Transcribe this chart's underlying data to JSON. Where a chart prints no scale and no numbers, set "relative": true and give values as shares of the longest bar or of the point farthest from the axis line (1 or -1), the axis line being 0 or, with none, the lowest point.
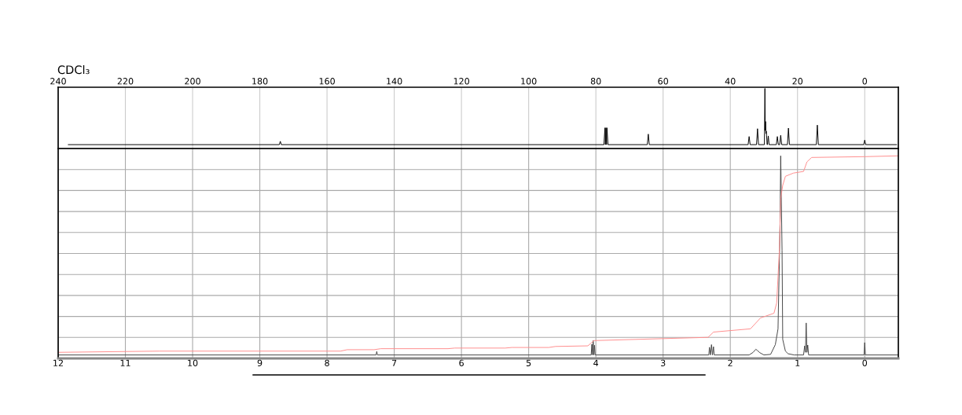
{
  "chart_data": [
    {
      "type": "line",
      "title": "CDCl₃",
      "relative": true,
      "color": "#000000",
      "xlim": [
        240,
        -10
      ],
      "xticks": [
        240,
        220,
        200,
        180,
        160,
        140,
        120,
        100,
        80,
        60,
        40,
        20,
        0
      ],
      "grid": "x",
      "tick_labels": "x",
      "x": [
        237,
        174.2,
        173.9,
        173.6,
        77.6,
        77.3,
        77.15,
        77.0,
        76.85,
        76.7,
        76.4,
        64.7,
        64.4,
        64.1,
        34.7,
        34.4,
        34.1,
        32.2,
        31.9,
        31.6,
        29.85,
        29.7,
        29.6,
        29.5,
        29.4,
        29.3,
        29.2,
        29.05,
        28.95,
        28.7,
        28.45,
        26.3,
        26.0,
        25.7,
        25.3,
        25.0,
        24.7,
        23.0,
        22.7,
        22.4,
        14.4,
        14.1,
        13.8,
        0.3,
        0.0,
        -0.3,
        -9.5
      ],
      "values": [
        0.065,
        0.065,
        0.12,
        0.065,
        0.065,
        0.345,
        0.065,
        0.345,
        0.065,
        0.345,
        0.065,
        0.065,
        0.24,
        0.065,
        0.065,
        0.2,
        0.065,
        0.065,
        0.33,
        0.065,
        0.065,
        1.0,
        0.3,
        0.45,
        0.25,
        0.29,
        0.22,
        0.065,
        0.065,
        0.21,
        0.065,
        0.065,
        0.2,
        0.065,
        0.065,
        0.22,
        0.065,
        0.065,
        0.34,
        0.065,
        0.065,
        0.39,
        0.065,
        0.065,
        0.14,
        0.065,
        0.065
      ]
    },
    {
      "type": "line",
      "relative": true,
      "xlim": [
        12,
        -0.5
      ],
      "xticks": [
        12,
        11,
        10,
        9,
        8,
        7,
        6,
        5,
        4,
        3,
        2,
        1,
        0
      ],
      "grid": true,
      "tick_labels": "x",
      "series": [
        {
          "color": "#444444",
          "x": [
            12.0,
            7.27,
            7.26,
            7.25,
            4.07,
            4.06,
            4.05,
            4.04,
            4.03,
            4.02,
            4.01,
            2.32,
            2.31,
            2.295,
            2.28,
            2.265,
            2.25,
            2.24,
            1.72,
            1.66,
            1.62,
            1.6,
            1.56,
            1.5,
            1.4,
            1.33,
            1.29,
            1.26,
            1.25,
            1.23,
            1.22,
            1.18,
            1.14,
            1.05,
            0.91,
            0.894,
            0.882,
            0.871,
            0.86,
            0.848,
            0.835,
            0.01,
            0.0,
            -0.01,
            -0.5
          ],
          "values": [
            0.017,
            0.017,
            0.034,
            0.017,
            0.017,
            0.07,
            0.017,
            0.088,
            0.017,
            0.065,
            0.017,
            0.017,
            0.055,
            0.017,
            0.068,
            0.017,
            0.058,
            0.017,
            0.017,
            0.03,
            0.045,
            0.04,
            0.028,
            0.017,
            0.02,
            0.068,
            0.146,
            0.66,
            1.0,
            0.533,
            0.094,
            0.036,
            0.023,
            0.017,
            0.017,
            0.062,
            0.03,
            0.175,
            0.03,
            0.066,
            0.017,
            0.017,
            0.078,
            0.017,
            0.017
          ]
        },
        {
          "color": "#ff8c8c",
          "x": [
            12.0,
            10.5,
            7.8,
            7.7,
            7.3,
            7.2,
            6.2,
            6.1,
            5.35,
            5.25,
            4.7,
            4.6,
            4.12,
            4.08,
            4.03,
            2.33,
            2.25,
            1.7,
            1.55,
            1.35,
            1.31,
            1.27,
            1.25,
            1.22,
            1.18,
            1.06,
            0.91,
            0.86,
            0.79,
            0.0,
            -0.5
          ],
          "values": [
            0.03,
            0.036,
            0.036,
            0.043,
            0.043,
            0.048,
            0.048,
            0.051,
            0.051,
            0.054,
            0.054,
            0.059,
            0.062,
            0.073,
            0.088,
            0.104,
            0.13,
            0.146,
            0.2,
            0.223,
            0.274,
            0.533,
            0.79,
            0.854,
            0.899,
            0.915,
            0.923,
            0.97,
            0.992,
            0.996,
            1.0
          ]
        }
      ]
    }
  ]
}
